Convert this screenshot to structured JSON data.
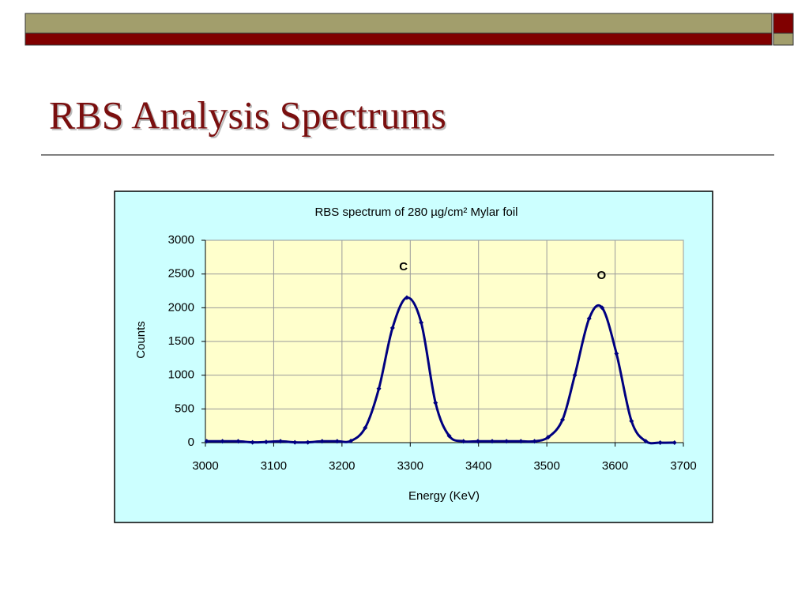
{
  "slide_title": "RBS Analysis Spectrums",
  "chart_data": {
    "type": "line",
    "title": "RBS spectrum of  280 µg/cm² Mylar foil",
    "xlabel": "Energy (KeV)",
    "ylabel": "Counts",
    "x": [
      3002,
      3025,
      3048,
      3069,
      3089,
      3110,
      3131,
      3150,
      3171,
      3193,
      3213,
      3234,
      3254,
      3274,
      3295,
      3316,
      3337,
      3357,
      3378,
      3399,
      3420,
      3441,
      3462,
      3482,
      3502,
      3523,
      3541,
      3562,
      3581,
      3602,
      3624,
      3645,
      3666,
      3687
    ],
    "series": [
      {
        "name": "Counts",
        "color": "#000080",
        "values": [
          20,
          20,
          20,
          5,
          10,
          20,
          5,
          5,
          20,
          20,
          25,
          220,
          800,
          1700,
          2150,
          1780,
          590,
          100,
          20,
          20,
          20,
          20,
          20,
          20,
          80,
          340,
          1000,
          1840,
          2000,
          1320,
          320,
          20,
          0,
          0
        ]
      }
    ],
    "annotations": [
      {
        "text": "C",
        "x": 3290,
        "y": 2600
      },
      {
        "text": "O",
        "x": 3580,
        "y": 2470
      }
    ],
    "xlim": [
      3000,
      3700
    ],
    "ylim": [
      0,
      3000
    ],
    "xticks": [
      3000,
      3100,
      3200,
      3300,
      3400,
      3500,
      3600,
      3700
    ],
    "yticks": [
      0,
      500,
      1000,
      1500,
      2000,
      2500,
      3000
    ],
    "grid": true
  }
}
